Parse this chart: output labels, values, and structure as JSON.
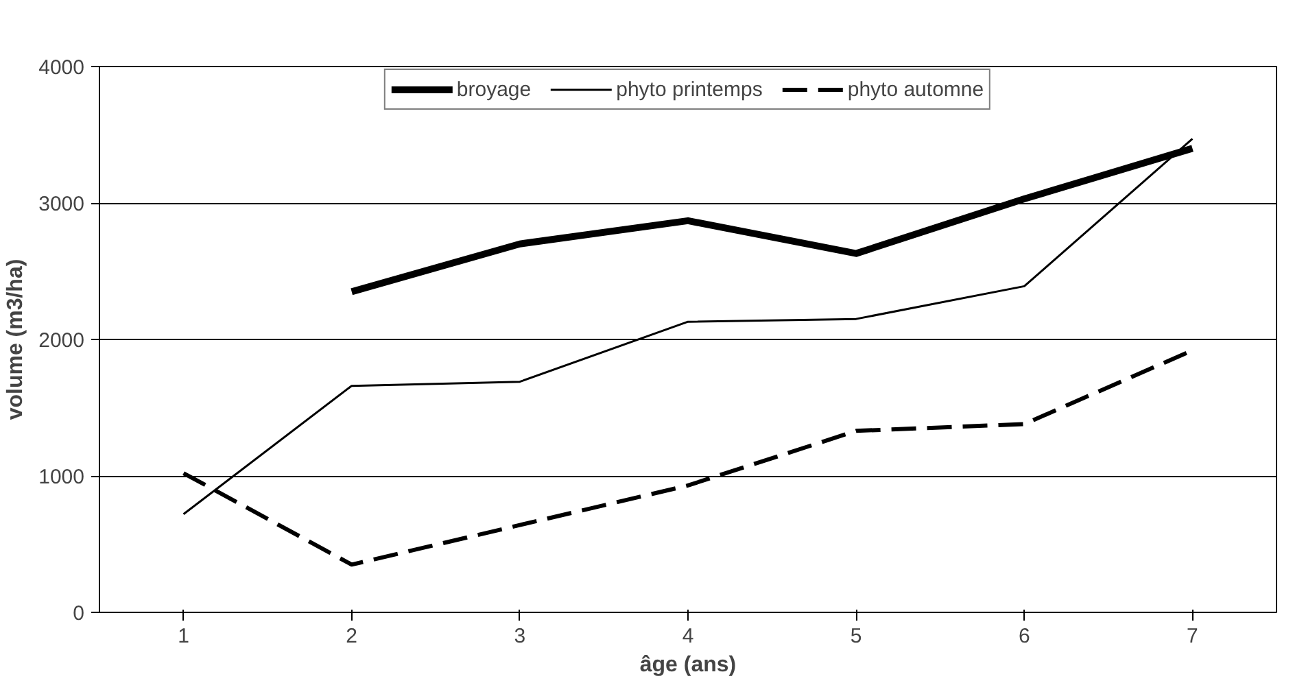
{
  "chart_data": {
    "type": "line",
    "xlabel": "âge (ans)",
    "ylabel": "volume (m3/ha)",
    "categories": [
      "1",
      "2",
      "3",
      "4",
      "5",
      "6",
      "7"
    ],
    "ylim": [
      0,
      4000
    ],
    "yticks": [
      0,
      1000,
      2000,
      3000,
      4000
    ],
    "grid": "y",
    "legend": "top",
    "series": [
      {
        "name": "broyage",
        "color": "#000000",
        "line_style": "solid",
        "values": [
          null,
          2350,
          2700,
          2870,
          2630,
          3030,
          3400
        ]
      },
      {
        "name": "phyto printemps",
        "color": "#000000",
        "line_style": "solid",
        "values": [
          720,
          1660,
          1690,
          2130,
          2150,
          2390,
          3470
        ]
      },
      {
        "name": "phyto automne",
        "color": "#000000",
        "line_style": "dashed",
        "values": [
          1020,
          350,
          640,
          930,
          1330,
          1380,
          1920
        ]
      }
    ]
  }
}
